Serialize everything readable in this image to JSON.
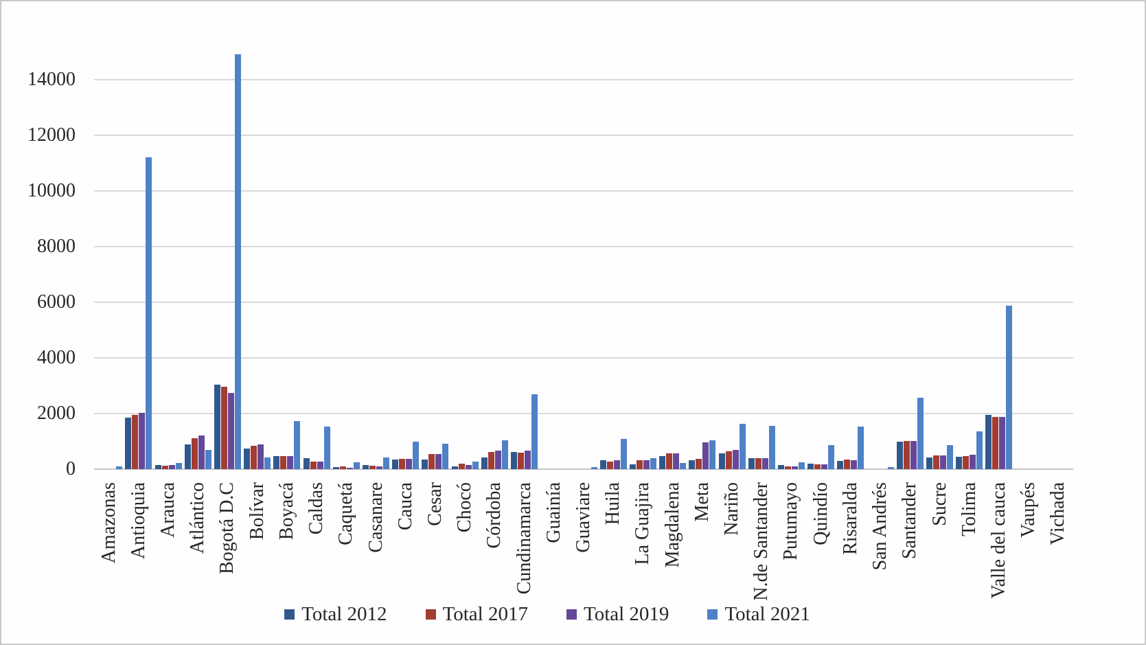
{
  "chart_data": {
    "type": "bar",
    "title": "",
    "xlabel": "",
    "ylabel": "",
    "categories": [
      "Amazonas",
      "Antioquia",
      "Arauca",
      "Atlántico",
      "Bogotá D.C",
      "Bolívar",
      "Boyacá",
      "Caldas",
      "Caquetá",
      "Casanare",
      "Cauca",
      "Cesar",
      "Chocó",
      "Córdoba",
      "Cundinamarca",
      "Guainía",
      "Guaviare",
      "Huila",
      "La Guajira",
      "Magdalena",
      "Meta",
      "Nariño",
      "N.de Santander",
      "Putumayo",
      "Quindío",
      "Risaralda",
      "San Andrés",
      "Santander",
      "Sucre",
      "Tolima",
      "Valle del cauca",
      "Vaupés",
      "Vichada"
    ],
    "series": [
      {
        "name": "Total 2012",
        "color": "#31588C",
        "values": [
          0,
          1850,
          150,
          880,
          3030,
          750,
          480,
          390,
          70,
          140,
          340,
          340,
          100,
          420,
          620,
          0,
          0,
          330,
          165,
          460,
          330,
          560,
          400,
          140,
          195,
          285,
          0,
          990,
          415,
          440,
          1950,
          0,
          0
        ]
      },
      {
        "name": "Total 2017",
        "color": "#A33C33",
        "values": [
          0,
          1950,
          130,
          1110,
          2970,
          840,
          470,
          280,
          110,
          130,
          360,
          540,
          200,
          620,
          580,
          0,
          0,
          270,
          315,
          560,
          370,
          640,
          400,
          110,
          185,
          340,
          0,
          1010,
          495,
          480,
          1880,
          0,
          0
        ]
      },
      {
        "name": "Total 2019",
        "color": "#66489A",
        "values": [
          0,
          2030,
          140,
          1200,
          2740,
          890,
          470,
          280,
          60,
          110,
          380,
          550,
          155,
          670,
          670,
          0,
          0,
          320,
          315,
          560,
          955,
          700,
          400,
          110,
          175,
          330,
          0,
          1020,
          490,
          530,
          1870,
          0,
          0
        ]
      },
      {
        "name": "Total 2021",
        "color": "#4F81C7",
        "values": [
          95,
          11200,
          215,
          680,
          14900,
          420,
          1730,
          1530,
          250,
          430,
          980,
          910,
          260,
          1040,
          2700,
          0,
          65,
          1090,
          400,
          210,
          1035,
          1630,
          1565,
          250,
          865,
          1520,
          65,
          2560,
          870,
          1365,
          5880,
          0,
          0
        ]
      }
    ],
    "ylim": [
      0,
      15000
    ],
    "ytick_step": 2000,
    "yticks": [
      "0",
      "2000",
      "4000",
      "6000",
      "8000",
      "10000",
      "12000",
      "14000"
    ],
    "grid": true,
    "legend_position": "bottom",
    "gridline_color": "#d9d9d9",
    "axis_line_color": "#c6c6c6"
  }
}
